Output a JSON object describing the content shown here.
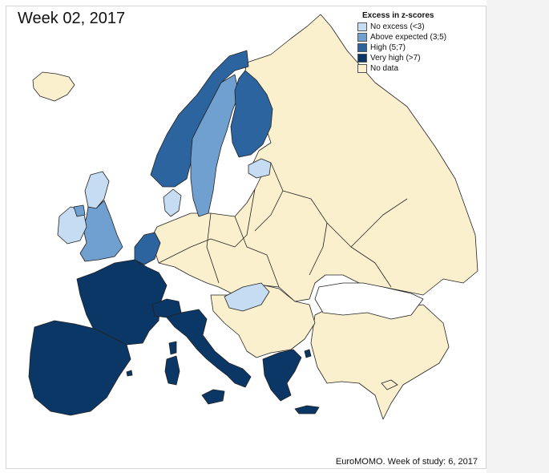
{
  "title": "Week 02, 2017",
  "footer": "EuroMOMO. Week of study: 6, 2017",
  "legend": {
    "title": "Excess in z-scores",
    "items": [
      {
        "label": "No excess (<3)",
        "color": "#c6dcf2"
      },
      {
        "label": "Above expected (3;5)",
        "color": "#6fa0d0"
      },
      {
        "label": "High (5;7)",
        "color": "#2c64a0"
      },
      {
        "label": "Very high (>7)",
        "color": "#0a3766"
      },
      {
        "label": "No data",
        "color": "#fbf0cd"
      }
    ]
  },
  "colors": {
    "no_excess": "#c6dcf2",
    "above_expected": "#6fa0d0",
    "high": "#2c64a0",
    "very_high": "#0a3766",
    "no_data": "#fbf0cd",
    "sea": "#ffffff"
  }
}
